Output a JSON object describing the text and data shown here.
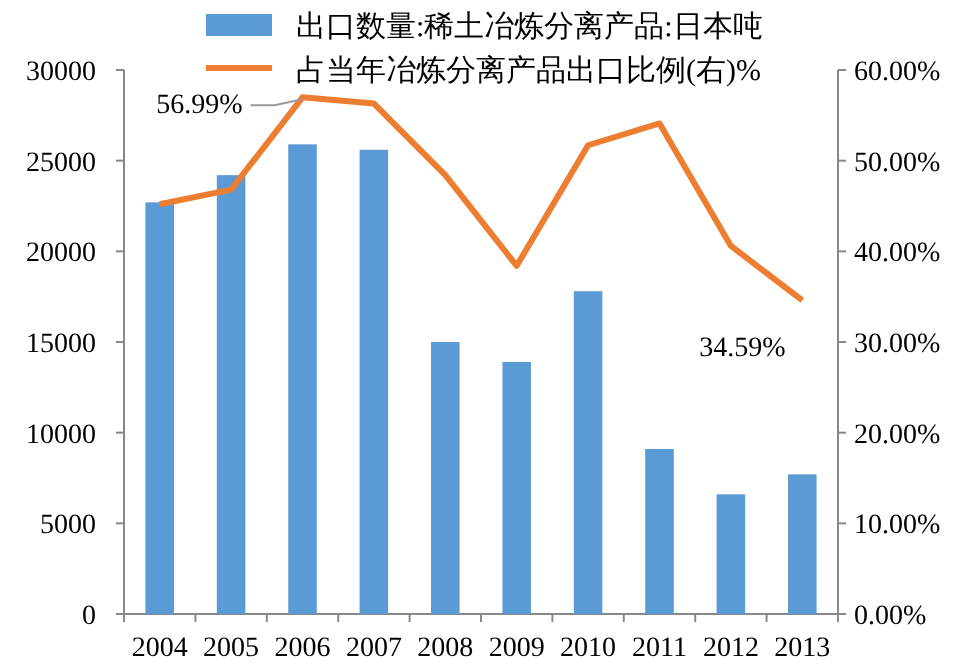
{
  "chart_data": {
    "type": "bar",
    "categories": [
      "2004",
      "2005",
      "2006",
      "2007",
      "2008",
      "2009",
      "2010",
      "2011",
      "2012",
      "2013"
    ],
    "series": [
      {
        "name": "出口数量:稀土冶炼分离产品:日本吨",
        "color": "#5b9bd5",
        "values": [
          22700,
          24200,
          25900,
          25600,
          15000,
          13900,
          17800,
          9100,
          6600,
          7700
        ]
      },
      {
        "name": "占当年冶炼分离产品出口比例(右)%",
        "type": "line",
        "axis": "y2",
        "color": "#ed7d31",
        "values": [
          45.2,
          46.8,
          56.99,
          56.3,
          48.4,
          38.4,
          51.7,
          54.1,
          40.6,
          34.59
        ],
        "value_labels": [
          null,
          null,
          "56.99%",
          null,
          null,
          null,
          null,
          null,
          null,
          "34.59%"
        ]
      }
    ],
    "ylim": [
      0,
      30000
    ],
    "yticks": [
      0,
      5000,
      10000,
      15000,
      20000,
      25000,
      30000
    ],
    "y2lim": [
      0,
      60
    ],
    "y2ticks": [
      {
        "value": 0,
        "label": "0.00%"
      },
      {
        "value": 10,
        "label": "10.00%"
      },
      {
        "value": 20,
        "label": "20.00%"
      },
      {
        "value": 30,
        "label": "30.00%"
      },
      {
        "value": 40,
        "label": "40.00%"
      },
      {
        "value": 50,
        "label": "50.00%"
      },
      {
        "value": 60,
        "label": "60.00%"
      }
    ],
    "legend": "top",
    "grid": false,
    "marker": "none",
    "line_style": "solid"
  }
}
